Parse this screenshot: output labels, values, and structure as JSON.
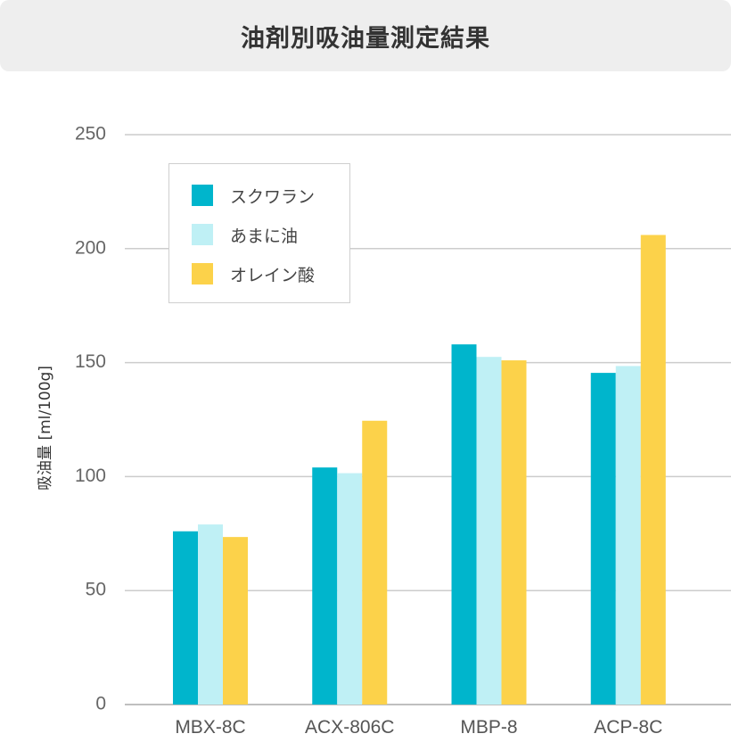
{
  "title": "油剤別吸油量測定結果",
  "chart_data": {
    "type": "bar",
    "categories": [
      "MBX-8C",
      "ACX-806C",
      "MBP-8",
      "ACP-8C"
    ],
    "series": [
      {
        "name": "スクワラン",
        "color": "#00b5cc",
        "values": [
          76,
          104,
          158,
          145.5
        ]
      },
      {
        "name": "あまに油",
        "color": "#bff0f5",
        "values": [
          79,
          101.5,
          152.5,
          148.5
        ]
      },
      {
        "name": "オレイン酸",
        "color": "#fcd24a",
        "values": [
          73.5,
          124.5,
          151,
          206
        ]
      }
    ],
    "ylabel": "吸油量 [ml/100g]",
    "ylim": [
      0,
      250
    ],
    "yticks": [
      "0",
      "50",
      "100",
      "150",
      "200",
      "250"
    ],
    "grid": true,
    "legend_position": "top-left"
  }
}
